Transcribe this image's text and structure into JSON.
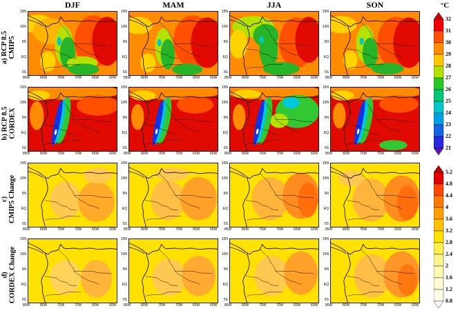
{
  "chart_data": {
    "type": "heatmap",
    "columns": [
      "DJF",
      "MAM",
      "JJA",
      "SON"
    ],
    "rows": [
      {
        "id": "a",
        "label_lines": [
          "a) RCP 8.5",
          "CMIP5"
        ]
      },
      {
        "id": "b",
        "label_lines": [
          "b) RCP 8.5",
          "CORDEX"
        ]
      },
      {
        "id": "c",
        "label_lines": [
          "c)",
          "CMIP5 Change"
        ]
      },
      {
        "id": "d",
        "label_lines": [
          "d)",
          "CORDEX Change"
        ]
      }
    ],
    "region": {
      "lat_ticks": [
        "15N",
        "10N",
        "5N",
        "EQ",
        "5S"
      ],
      "lon_ticks": [
        "85W",
        "80W",
        "75W",
        "70W",
        "65W",
        "60W"
      ]
    },
    "colorbars": [
      {
        "id": "temperature",
        "title": "°C",
        "tick_labels": [
          "32",
          "31",
          "30",
          "29",
          "28",
          "27",
          "26",
          "25",
          "24",
          "23",
          "22",
          "21"
        ],
        "arrow_top_color": "#C80000",
        "arrow_bottom_color": "#5A14B4",
        "band_colors": [
          "#F00000",
          "#FF5000",
          "#FF8C00",
          "#FFC800",
          "#B4E100",
          "#28C828",
          "#00C878",
          "#00C8C8",
          "#00A0E6",
          "#1464E6",
          "#2828DC"
        ]
      },
      {
        "id": "change",
        "title": "",
        "tick_labels": [
          "5.2",
          "4.8",
          "4.4",
          "4",
          "3.6",
          "3.2",
          "2.8",
          "2.4",
          "2",
          "1.6",
          "1.2",
          "0.8"
        ],
        "arrow_top_color": "#B40000",
        "arrow_bottom_color": "#FFFFFF",
        "band_colors": [
          "#E10000",
          "#FF4600",
          "#FF7800",
          "#FF9E00",
          "#FFC100",
          "#FFE100",
          "#FFEE50",
          "#FFF58C",
          "#FFF9B4",
          "#FFFBD2",
          "#FFFDE8"
        ]
      }
    ],
    "blob_format": "[hex_color, cx, cy, rx, ry, rotate_deg] approximate shaded regions in 128x90 map coordinates",
    "panels": [
      {
        "row": "a",
        "col": "DJF",
        "base": "#FF8C00",
        "blobs": [
          [
            "#FFD200",
            14,
            18,
            22,
            13,
            0
          ],
          [
            "#FFB400",
            32,
            28,
            24,
            18,
            0
          ],
          [
            "#FF5000",
            94,
            42,
            27,
            36,
            0
          ],
          [
            "#E00A00",
            113,
            42,
            21,
            34,
            0
          ],
          [
            "#B4E100",
            52,
            48,
            13,
            27,
            0
          ],
          [
            "#28B428",
            57,
            58,
            11,
            22,
            0
          ],
          [
            "#00C8C8",
            45,
            42,
            3,
            6,
            0
          ],
          [
            "#B4E100",
            78,
            72,
            22,
            9,
            0
          ],
          [
            "#28B428",
            80,
            81,
            22,
            8,
            0
          ],
          [
            "#FFD200",
            29,
            70,
            11,
            14,
            0
          ]
        ]
      },
      {
        "row": "a",
        "col": "MAM",
        "base": "#FF8C00",
        "blobs": [
          [
            "#FFD200",
            14,
            20,
            20,
            12,
            0
          ],
          [
            "#FF5000",
            92,
            42,
            28,
            36,
            0
          ],
          [
            "#E00A00",
            112,
            44,
            23,
            35,
            0
          ],
          [
            "#B4E100",
            50,
            50,
            12,
            26,
            0
          ],
          [
            "#28B428",
            56,
            60,
            10,
            21,
            0
          ],
          [
            "#00C8C8",
            44,
            44,
            3,
            5,
            0
          ],
          [
            "#28B428",
            84,
            81,
            22,
            8,
            0
          ],
          [
            "#FFD200",
            28,
            72,
            11,
            13,
            0
          ]
        ]
      },
      {
        "row": "a",
        "col": "JJA",
        "base": "#FF8C00",
        "blobs": [
          [
            "#B4E100",
            34,
            22,
            30,
            15,
            0
          ],
          [
            "#28B428",
            52,
            34,
            18,
            16,
            0
          ],
          [
            "#FFD200",
            13,
            46,
            13,
            20,
            0
          ],
          [
            "#28B428",
            56,
            54,
            13,
            26,
            0
          ],
          [
            "#FF5000",
            96,
            44,
            25,
            35,
            0
          ],
          [
            "#E00A00",
            113,
            40,
            19,
            32,
            0
          ],
          [
            "#28B428",
            74,
            80,
            26,
            9,
            0
          ],
          [
            "#00C8C8",
            46,
            40,
            3,
            5,
            0
          ]
        ]
      },
      {
        "row": "a",
        "col": "SON",
        "base": "#FF8C00",
        "blobs": [
          [
            "#FFD200",
            16,
            19,
            22,
            12,
            0
          ],
          [
            "#FF5000",
            94,
            44,
            27,
            36,
            0
          ],
          [
            "#E00A00",
            112,
            44,
            22,
            35,
            0
          ],
          [
            "#B4E100",
            50,
            46,
            13,
            26,
            0
          ],
          [
            "#28B428",
            57,
            58,
            11,
            21,
            0
          ],
          [
            "#28B428",
            82,
            80,
            23,
            8,
            0
          ],
          [
            "#00C8C8",
            45,
            42,
            3,
            5,
            0
          ],
          [
            "#FFD200",
            29,
            68,
            10,
            13,
            0
          ]
        ]
      },
      {
        "row": "b",
        "col": "DJF",
        "base": "#E00A00",
        "blobs": [
          [
            "#FF8C00",
            60,
            7,
            72,
            11,
            0
          ],
          [
            "#FFD200",
            16,
            12,
            16,
            7,
            0
          ],
          [
            "#FF5000",
            100,
            26,
            30,
            14,
            0
          ],
          [
            "#FF8C00",
            13,
            40,
            10,
            20,
            0
          ],
          [
            "#32C832",
            51,
            47,
            8,
            33,
            12
          ],
          [
            "#00C8DC",
            46,
            48,
            5,
            32,
            12
          ],
          [
            "#1432E6",
            42,
            50,
            4,
            32,
            12
          ],
          [
            "#FFFFFF",
            40,
            63,
            1.5,
            4,
            12
          ]
        ]
      },
      {
        "row": "b",
        "col": "MAM",
        "base": "#E00A00",
        "blobs": [
          [
            "#FF8C00",
            60,
            7,
            72,
            11,
            0
          ],
          [
            "#FFD200",
            21,
            12,
            18,
            7,
            0
          ],
          [
            "#FF5000",
            95,
            25,
            26,
            12,
            0
          ],
          [
            "#FF8C00",
            13,
            42,
            9,
            18,
            0
          ],
          [
            "#32C832",
            51,
            47,
            8,
            33,
            12
          ],
          [
            "#00C8DC",
            46,
            48,
            5,
            32,
            12
          ],
          [
            "#1432E6",
            42,
            50,
            4,
            32,
            12
          ],
          [
            "#FFFFFF",
            40,
            62,
            1.5,
            4,
            12
          ]
        ]
      },
      {
        "row": "b",
        "col": "JJA",
        "base": "#E00A00",
        "blobs": [
          [
            "#FF8C00",
            60,
            7,
            72,
            11,
            0
          ],
          [
            "#FFD200",
            25,
            10,
            20,
            6,
            0
          ],
          [
            "#32C832",
            97,
            34,
            31,
            23,
            0
          ],
          [
            "#00C8DC",
            88,
            22,
            12,
            8,
            0
          ],
          [
            "#B4E100",
            71,
            47,
            13,
            10,
            0
          ],
          [
            "#FF8C00",
            14,
            42,
            9,
            18,
            0
          ],
          [
            "#32C832",
            51,
            47,
            8,
            33,
            12
          ],
          [
            "#00C8DC",
            46,
            48,
            5,
            32,
            12
          ],
          [
            "#1432E6",
            42,
            50,
            4,
            32,
            12
          ],
          [
            "#FFFFFF",
            40,
            62,
            1.5,
            4,
            12
          ]
        ]
      },
      {
        "row": "b",
        "col": "SON",
        "base": "#E00A00",
        "blobs": [
          [
            "#FF8C00",
            60,
            7,
            72,
            11,
            0
          ],
          [
            "#FFD200",
            18,
            12,
            16,
            7,
            0
          ],
          [
            "#FF5000",
            98,
            24,
            28,
            12,
            0
          ],
          [
            "#FF8C00",
            13,
            40,
            9,
            18,
            0
          ],
          [
            "#32C832",
            90,
            81,
            20,
            7,
            0
          ],
          [
            "#32C832",
            51,
            47,
            8,
            33,
            12
          ],
          [
            "#00C8DC",
            46,
            48,
            5,
            32,
            12
          ],
          [
            "#1432E6",
            42,
            50,
            4,
            32,
            12
          ],
          [
            "#FFFFFF",
            40,
            62,
            1.5,
            4,
            12
          ]
        ]
      },
      {
        "row": "c",
        "col": "DJF",
        "base": "#FFE100",
        "blobs": [
          [
            "#FFC850",
            54,
            52,
            22,
            26,
            0
          ],
          [
            "#FFAA28",
            98,
            54,
            26,
            28,
            0
          ],
          [
            "#FFC850",
            100,
            18,
            20,
            11,
            0
          ]
        ]
      },
      {
        "row": "c",
        "col": "MAM",
        "base": "#FFE100",
        "blobs": [
          [
            "#FFBE46",
            56,
            52,
            24,
            28,
            0
          ],
          [
            "#FFA028",
            100,
            50,
            26,
            30,
            0
          ],
          [
            "#FFC850",
            62,
            16,
            24,
            9,
            0
          ]
        ]
      },
      {
        "row": "c",
        "col": "JJA",
        "base": "#FFE100",
        "blobs": [
          [
            "#FFB43C",
            58,
            50,
            26,
            30,
            0
          ],
          [
            "#FF8C1E",
            102,
            46,
            26,
            32,
            0
          ],
          [
            "#FF6E0A",
            112,
            52,
            14,
            24,
            0
          ]
        ]
      },
      {
        "row": "c",
        "col": "SON",
        "base": "#FFE100",
        "blobs": [
          [
            "#FFB43C",
            58,
            52,
            26,
            30,
            0
          ],
          [
            "#FF8C1E",
            102,
            50,
            26,
            32,
            0
          ],
          [
            "#FF6E0A",
            110,
            56,
            15,
            24,
            0
          ],
          [
            "#FFC850",
            30,
            22,
            18,
            11,
            0
          ]
        ]
      },
      {
        "row": "d",
        "col": "DJF",
        "base": "#FFE100",
        "blobs": [
          [
            "#FFD25A",
            54,
            54,
            22,
            24,
            0
          ],
          [
            "#FFB43C",
            98,
            56,
            22,
            26,
            0
          ]
        ]
      },
      {
        "row": "d",
        "col": "MAM",
        "base": "#FFE100",
        "blobs": [
          [
            "#FFC850",
            58,
            54,
            24,
            26,
            0
          ],
          [
            "#FFAA32",
            100,
            52,
            24,
            28,
            0
          ]
        ]
      },
      {
        "row": "d",
        "col": "JJA",
        "base": "#FFE100",
        "blobs": [
          [
            "#FFC850",
            60,
            52,
            24,
            28,
            0
          ],
          [
            "#FFA028",
            102,
            48,
            24,
            30,
            0
          ]
        ]
      },
      {
        "row": "d",
        "col": "SON",
        "base": "#FFE100",
        "blobs": [
          [
            "#FFBE46",
            60,
            52,
            26,
            30,
            0
          ],
          [
            "#FF9628",
            102,
            50,
            26,
            32,
            0
          ],
          [
            "#FF780F",
            110,
            58,
            14,
            22,
            0
          ]
        ]
      }
    ]
  }
}
